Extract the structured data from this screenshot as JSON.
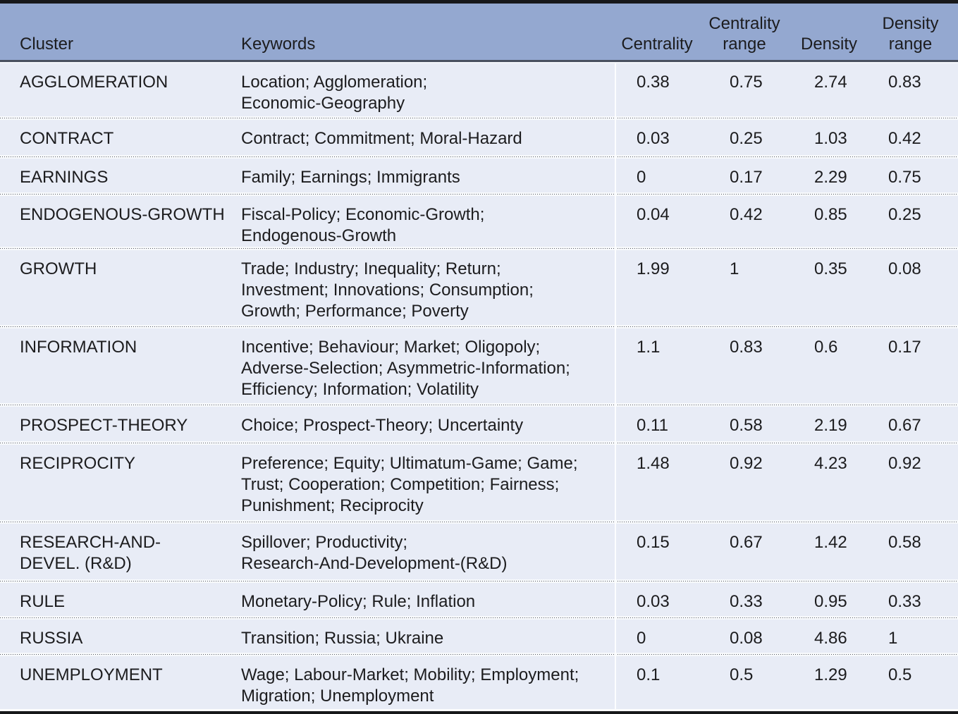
{
  "colors": {
    "header_bg": "#94a8d0",
    "row_bg": "#e8ecf6",
    "header_border": "#49505f",
    "top_border": "#17181a",
    "dot": "#55585e",
    "text": "#1c1c1e"
  },
  "table": {
    "columns": [
      "Cluster",
      "Keywords",
      "Centrality",
      "Centrality range",
      "Density",
      "Density range"
    ],
    "rows": [
      {
        "cluster": "AGGLOMERATION",
        "keywords": "Location; Agglomeration;\nEconomic-Geography",
        "centrality": "0.38",
        "centrality_range": "0.75",
        "density": "2.74",
        "density_range": "0.83"
      },
      {
        "cluster": "CONTRACT",
        "keywords": "Contract; Commitment; Moral-Hazard",
        "centrality": "0.03",
        "centrality_range": "0.25",
        "density": "1.03",
        "density_range": "0.42"
      },
      {
        "cluster": "EARNINGS",
        "keywords": "Family; Earnings; Immigrants",
        "centrality": "0",
        "centrality_range": "0.17",
        "density": "2.29",
        "density_range": "0.75"
      },
      {
        "cluster": "ENDOGENOUS-GROWTH",
        "keywords": "Fiscal-Policy; Economic-Growth;\nEndogenous-Growth",
        "centrality": "0.04",
        "centrality_range": "0.42",
        "density": "0.85",
        "density_range": "0.25"
      },
      {
        "cluster": "GROWTH",
        "keywords": "Trade; Industry; Inequality; Return;\nInvestment; Innovations; Consumption;\nGrowth; Performance; Poverty",
        "centrality": "1.99",
        "centrality_range": "1",
        "density": "0.35",
        "density_range": "0.08"
      },
      {
        "cluster": "INFORMATION",
        "keywords": "Incentive; Behaviour; Market; Oligopoly;\nAdverse-Selection; Asymmetric-Information;\nEfficiency; Information; Volatility",
        "centrality": "1.1",
        "centrality_range": "0.83",
        "density": "0.6",
        "density_range": "0.17"
      },
      {
        "cluster": "PROSPECT-THEORY",
        "keywords": "Choice; Prospect-Theory; Uncertainty",
        "centrality": "0.11",
        "centrality_range": "0.58",
        "density": "2.19",
        "density_range": "0.67"
      },
      {
        "cluster": "RECIPROCITY",
        "keywords": "Preference; Equity; Ultimatum-Game; Game;\nTrust; Cooperation; Competition; Fairness;\nPunishment; Reciprocity",
        "centrality": "1.48",
        "centrality_range": "0.92",
        "density": "4.23",
        "density_range": "0.92"
      },
      {
        "cluster": "RESEARCH-AND-\nDEVEL. (R&D)",
        "keywords": "Spillover; Productivity;\nResearch-And-Development-(R&D)",
        "centrality": "0.15",
        "centrality_range": "0.67",
        "density": "1.42",
        "density_range": "0.58"
      },
      {
        "cluster": "RULE",
        "keywords": "Monetary-Policy; Rule; Inflation",
        "centrality": "0.03",
        "centrality_range": "0.33",
        "density": "0.95",
        "density_range": "0.33"
      },
      {
        "cluster": "RUSSIA",
        "keywords": "Transition; Russia; Ukraine",
        "centrality": "0",
        "centrality_range": "0.08",
        "density": "4.86",
        "density_range": "1"
      },
      {
        "cluster": "UNEMPLOYMENT",
        "keywords": "Wage; Labour-Market; Mobility; Employment;\nMigration; Unemployment",
        "centrality": "0.1",
        "centrality_range": "0.5",
        "density": "1.29",
        "density_range": "0.5"
      }
    ]
  }
}
